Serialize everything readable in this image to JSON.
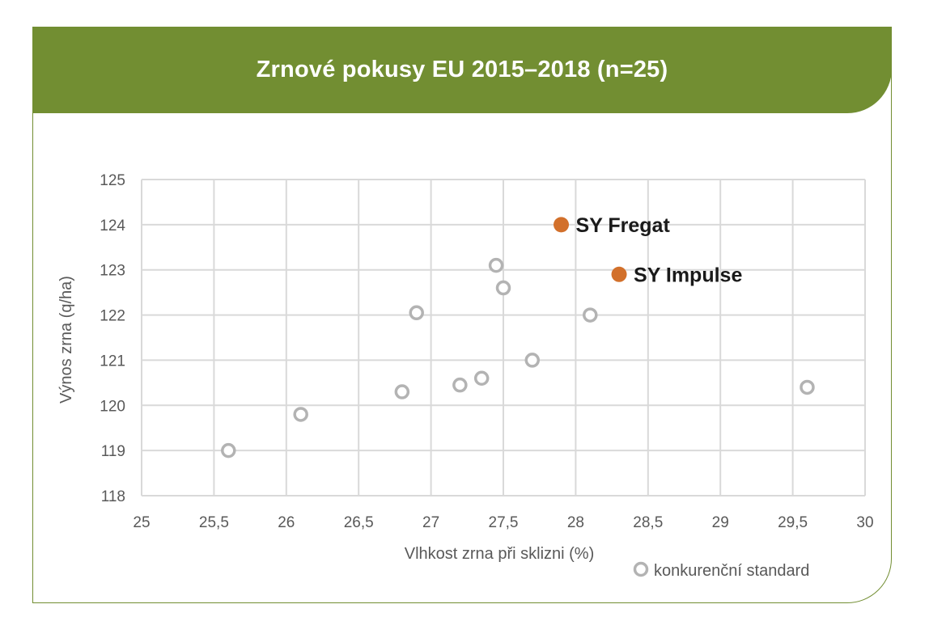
{
  "chart_data": {
    "type": "scatter",
    "title": "Zrnové pokusy EU 2015–2018 (n=25)",
    "xlabel": "Vlhkost zrna při sklizni (%)",
    "ylabel": "Výnos zrna (q/ha)",
    "xlim": [
      25,
      30
    ],
    "ylim": [
      118,
      125
    ],
    "x_ticks": [
      "25",
      "25,5",
      "26",
      "26,5",
      "27",
      "27,5",
      "28",
      "28,5",
      "29",
      "29,5",
      "30"
    ],
    "y_ticks": [
      "118",
      "119",
      "120",
      "121",
      "122",
      "123",
      "124",
      "125"
    ],
    "grid": true,
    "legend_position": "bottom-right",
    "legend": [
      "konkurenční standard"
    ],
    "series": [
      {
        "name": "konkurenční standard",
        "marker": "hollow-circle",
        "color": "#b3b3b3",
        "points": [
          {
            "x": 25.6,
            "y": 119.0
          },
          {
            "x": 26.1,
            "y": 119.8
          },
          {
            "x": 26.8,
            "y": 120.3
          },
          {
            "x": 26.9,
            "y": 122.05
          },
          {
            "x": 27.2,
            "y": 120.45
          },
          {
            "x": 27.35,
            "y": 120.6
          },
          {
            "x": 27.45,
            "y": 123.1
          },
          {
            "x": 27.5,
            "y": 122.6
          },
          {
            "x": 27.7,
            "y": 121.0
          },
          {
            "x": 28.1,
            "y": 122.0
          },
          {
            "x": 29.6,
            "y": 120.4
          }
        ]
      },
      {
        "marker": "filled-circle",
        "color": "#d2702b",
        "points": [
          {
            "x": 27.9,
            "y": 124.0,
            "label": "SY Fregat"
          },
          {
            "x": 28.3,
            "y": 122.9,
            "label": "SY Impulse"
          }
        ]
      }
    ]
  },
  "colors": {
    "header": "#728e32",
    "border": "#728e32",
    "grid": "#d9d9d9",
    "axis_text": "#595959",
    "label_text": "#1a1a1a"
  }
}
